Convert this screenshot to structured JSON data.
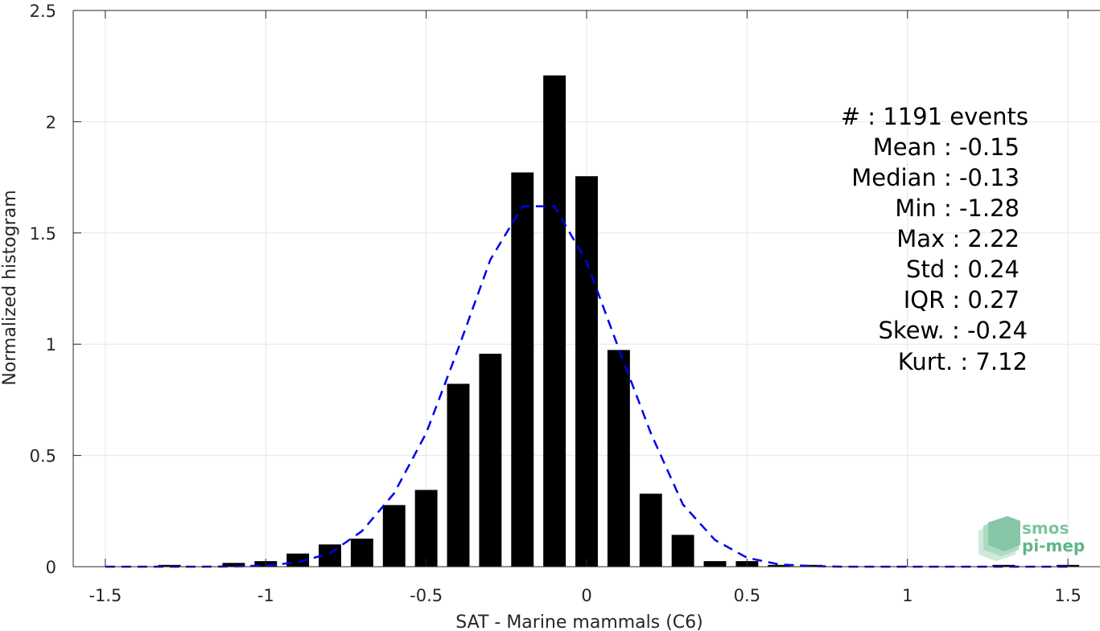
{
  "chart_data": {
    "type": "bar",
    "xlabel": "SAT - Marine mammals (C6)",
    "ylabel": "Normalized histogram",
    "xlim": [
      -1.6,
      1.6
    ],
    "ylim": [
      0,
      2.5
    ],
    "x_ticks": [
      -1.5,
      -1,
      -0.5,
      0,
      0.5,
      1,
      1.5
    ],
    "x_tick_labels": [
      "-1.5",
      "-1",
      "-0.5",
      "0",
      "0.5",
      "1",
      "1.5"
    ],
    "y_ticks": [
      0,
      0.5,
      1,
      1.5,
      2,
      2.5
    ],
    "y_tick_labels": [
      "0",
      "0.5",
      "1",
      "1.5",
      "2",
      "2.5"
    ],
    "grid": true,
    "bar_width": 0.07,
    "bar_color": "#000000",
    "bars": {
      "x": [
        -1.5,
        -1.4,
        -1.3,
        -1.2,
        -1.1,
        -1.0,
        -0.9,
        -0.8,
        -0.7,
        -0.6,
        -0.5,
        -0.4,
        -0.3,
        -0.2,
        -0.1,
        0.0,
        0.1,
        0.2,
        0.3,
        0.4,
        0.5,
        0.6,
        0.7,
        0.8,
        0.9,
        1.0,
        1.1,
        1.2,
        1.3,
        1.4,
        1.5
      ],
      "values": [
        0,
        0,
        0.008,
        0,
        0.017,
        0.025,
        0.059,
        0.1,
        0.126,
        0.277,
        0.345,
        0.822,
        0.957,
        1.772,
        2.208,
        1.755,
        0.974,
        0.328,
        0.143,
        0.025,
        0.025,
        0.008,
        0.008,
        0,
        0,
        0,
        0,
        0,
        0.008,
        0,
        0.008
      ]
    },
    "fit_curve": {
      "name": "",
      "style": "dashed",
      "color": "#0000ee",
      "x": [
        -1.5,
        -1.4,
        -1.3,
        -1.2,
        -1.1,
        -1.0,
        -0.9,
        -0.8,
        -0.7,
        -0.6,
        -0.5,
        -0.4,
        -0.3,
        -0.2,
        -0.1,
        0.0,
        0.1,
        0.2,
        0.3,
        0.4,
        0.5,
        0.6,
        0.7,
        0.8,
        0.9,
        1.0,
        1.1,
        1.2,
        1.3,
        1.4,
        1.5
      ],
      "values": [
        0,
        0,
        0,
        0,
        0.001,
        0.005,
        0.02,
        0.06,
        0.16,
        0.33,
        0.6,
        0.98,
        1.38,
        1.62,
        1.62,
        1.37,
        0.98,
        0.6,
        0.28,
        0.12,
        0.04,
        0.01,
        0.003,
        0,
        0,
        0,
        0,
        0,
        0,
        0,
        0
      ]
    },
    "stats": [
      {
        "label": "#  : 1191 events"
      },
      {
        "label": "Mean : -0.15"
      },
      {
        "label": "Median : -0.13"
      },
      {
        "label": "Min : -1.28"
      },
      {
        "label": "Max : 2.22"
      },
      {
        "label": "Std : 0.24"
      },
      {
        "label": "IQR : 0.27"
      },
      {
        "label": "Skew. : -0.24"
      },
      {
        "label": "Kurt. : 7.12"
      }
    ]
  },
  "logo": {
    "line1": "smos",
    "line2": "pi-mep",
    "color": "#5fb58a"
  },
  "colors": {
    "axis": "#262626",
    "grid": "#e6e6e6"
  }
}
